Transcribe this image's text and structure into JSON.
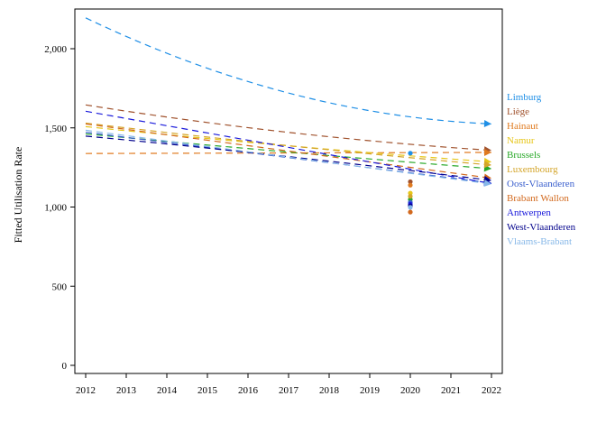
{
  "chart_data": {
    "type": "line",
    "title": "",
    "xlabel": "",
    "ylabel": "Fitted Utilisation Rate",
    "xlim": [
      2012,
      2022
    ],
    "ylim": [
      0,
      2300
    ],
    "x_ticks": [
      2012,
      2013,
      2014,
      2015,
      2016,
      2017,
      2018,
      2019,
      2020,
      2021,
      2022
    ],
    "y_ticks": [
      {
        "value": 0,
        "label": "0"
      },
      {
        "value": 500,
        "label": "500"
      },
      {
        "value": 1000,
        "label": "1,000"
      },
      {
        "value": 1500,
        "label": "1,500"
      },
      {
        "value": 2000,
        "label": "2,000"
      }
    ],
    "grid": false,
    "legend_position": "right",
    "observed_x": 2020,
    "series": [
      {
        "name": "Limburg",
        "color": "#1f8fe6",
        "start": 2195,
        "end": 1525,
        "curve": -140,
        "observed": 1340
      },
      {
        "name": "Liège",
        "color": "#a0522d",
        "start": 1645,
        "end": 1358,
        "curve": -30,
        "observed": 1160
      },
      {
        "name": "Hainaut",
        "color": "#e07b20",
        "start": 1338,
        "end": 1345,
        "curve": 0,
        "observed": 1138
      },
      {
        "name": "Namur",
        "color": "#e6c619",
        "start": 1508,
        "end": 1285,
        "curve": -10,
        "observed": 1088
      },
      {
        "name": "Brussels",
        "color": "#28a828",
        "start": 1462,
        "end": 1242,
        "curve": -5,
        "observed": 1048
      },
      {
        "name": "Luxembourg",
        "color": "#d4a52a",
        "start": 1530,
        "end": 1265,
        "curve": -10,
        "observed": 1068
      },
      {
        "name": "Oost-Vlaanderen",
        "color": "#3a5fcd",
        "start": 1472,
        "end": 1152,
        "curve": 0,
        "observed": 1030
      },
      {
        "name": "Brabant Wallon",
        "color": "#d2691e",
        "start": 1525,
        "end": 1182,
        "curve": 0,
        "observed": 968
      },
      {
        "name": "Antwerpen",
        "color": "#1a1adb",
        "start": 1605,
        "end": 1148,
        "curve": 0,
        "observed": 1018
      },
      {
        "name": "West-Vlaanderen",
        "color": "#00008b",
        "start": 1448,
        "end": 1168,
        "curve": 10,
        "observed": 1008
      },
      {
        "name": "Vlaams-Brabant",
        "color": "#87b8e8",
        "start": 1485,
        "end": 1145,
        "curve": 0,
        "observed": 998
      }
    ]
  }
}
